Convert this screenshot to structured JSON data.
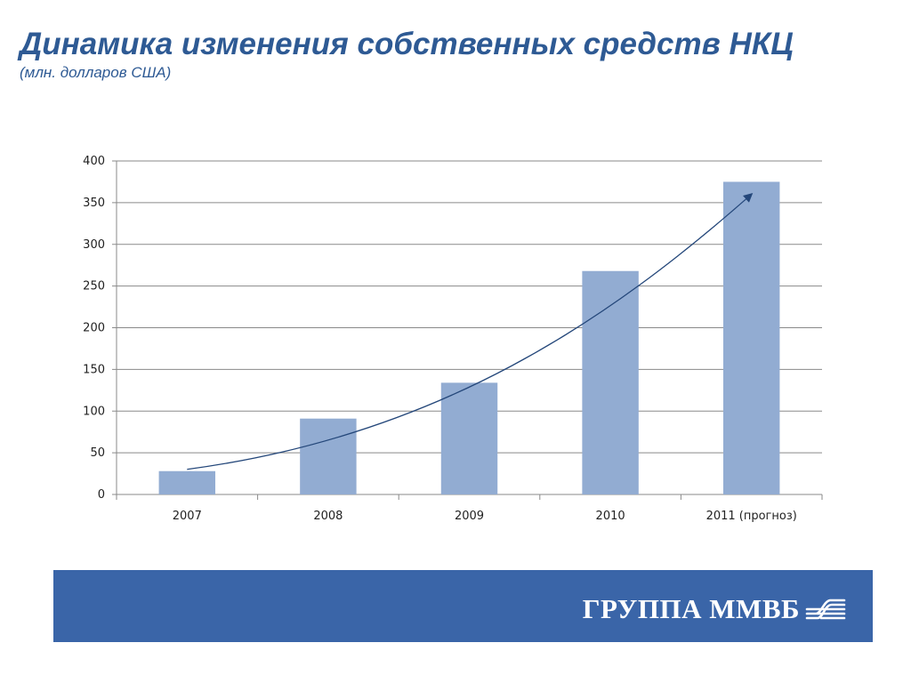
{
  "header": {
    "title": "Динамика изменения собственных средств НКЦ",
    "subtitle": "(млн. долларов США)"
  },
  "chart_data": {
    "type": "bar",
    "categories": [
      "2007",
      "2008",
      "2009",
      "2010",
      "2011 (прогноз)"
    ],
    "values": [
      28,
      91,
      134,
      268,
      375
    ],
    "ylim": [
      0,
      400
    ],
    "yticks": [
      0,
      50,
      100,
      150,
      200,
      250,
      300,
      350,
      400
    ],
    "grid": true,
    "bar_color": "#92acd2",
    "trend_arrow": true,
    "trend_color": "#24477a"
  },
  "footer": {
    "brand_text": "ГРУППА ММВБ",
    "band_color": "#3a65a8",
    "logo_icon": "mmvb-wave-logo-icon"
  }
}
